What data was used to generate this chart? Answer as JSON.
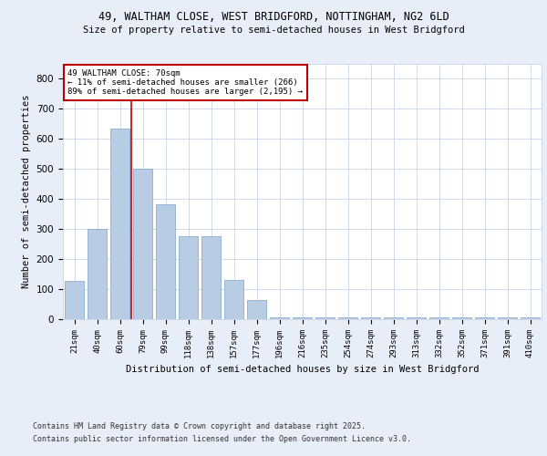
{
  "title1": "49, WALTHAM CLOSE, WEST BRIDGFORD, NOTTINGHAM, NG2 6LD",
  "title2": "Size of property relative to semi-detached houses in West Bridgford",
  "xlabel": "Distribution of semi-detached houses by size in West Bridgford",
  "ylabel": "Number of semi-detached properties",
  "categories": [
    "21sqm",
    "40sqm",
    "60sqm",
    "79sqm",
    "99sqm",
    "118sqm",
    "138sqm",
    "157sqm",
    "177sqm",
    "196sqm",
    "216sqm",
    "235sqm",
    "254sqm",
    "274sqm",
    "293sqm",
    "313sqm",
    "332sqm",
    "352sqm",
    "371sqm",
    "391sqm",
    "410sqm"
  ],
  "values": [
    128,
    300,
    635,
    500,
    383,
    275,
    275,
    130,
    65,
    5,
    5,
    5,
    5,
    5,
    5,
    5,
    5,
    5,
    5,
    5,
    5
  ],
  "bar_color": "#b8cce4",
  "bar_edge_color": "#7ba3c8",
  "vline_color": "#c00000",
  "annotation_title": "49 WALTHAM CLOSE: 70sqm",
  "annotation_line1": "← 11% of semi-detached houses are smaller (266)",
  "annotation_line2": "89% of semi-detached houses are larger (2,195) →",
  "annotation_box_color": "#c00000",
  "ylim": [
    0,
    850
  ],
  "yticks": [
    0,
    100,
    200,
    300,
    400,
    500,
    600,
    700,
    800
  ],
  "bg_color": "#e8eef8",
  "plot_bg_color": "#ffffff",
  "grid_color": "#c8d4e8",
  "footer1": "Contains HM Land Registry data © Crown copyright and database right 2025.",
  "footer2": "Contains public sector information licensed under the Open Government Licence v3.0."
}
